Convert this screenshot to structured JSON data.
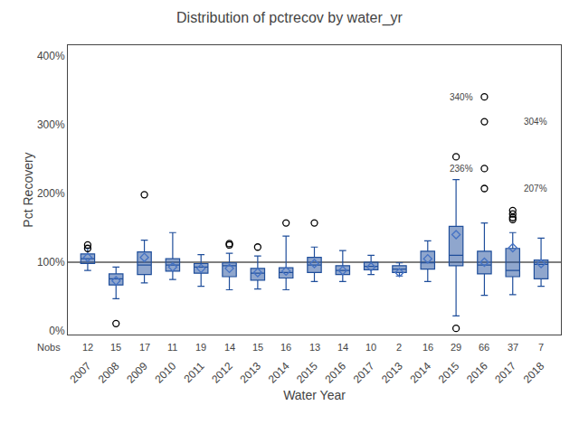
{
  "chart_data": {
    "type": "box",
    "title": "Distribution of pctrecov by water_yr",
    "xlabel": "Water Year",
    "ylabel": "Pct Recovery",
    "categories": [
      "2007",
      "2008",
      "2009",
      "2010",
      "2011",
      "2012",
      "2013",
      "2014",
      "2015",
      "2016",
      "2017",
      "2013",
      "2014",
      "2015",
      "2016",
      "2017",
      "2018"
    ],
    "ylim": [
      -5,
      415
    ],
    "yticks": [
      {
        "value": 0,
        "label": "0%"
      },
      {
        "value": 100,
        "label": "100%"
      },
      {
        "value": 200,
        "label": "200%"
      },
      {
        "value": 300,
        "label": "300%"
      },
      {
        "value": 400,
        "label": "400%"
      }
    ],
    "grid": false,
    "hline": 100,
    "series": [
      {
        "type": "box",
        "color": "#1f4e9b",
        "median": [
          105,
          76,
          96,
          96,
          93,
          95,
          84,
          85,
          96,
          88,
          94,
          90,
          99,
          110,
          96,
          88,
          97
        ],
        "q1": [
          98,
          67,
          82,
          87,
          84,
          79,
          74,
          77,
          85,
          82,
          89,
          85,
          90,
          95,
          83,
          79,
          76
        ],
        "q3": [
          112,
          83,
          115,
          105,
          98,
          99,
          91,
          92,
          107,
          95,
          100,
          95,
          116,
          152,
          116,
          120,
          103
        ],
        "whislo": [
          88,
          47,
          70,
          75,
          65,
          60,
          61,
          60,
          72,
          72,
          82,
          80,
          72,
          22,
          52,
          53,
          65
        ],
        "whishi": [
          120,
          93,
          132,
          143,
          111,
          113,
          109,
          138,
          122,
          117,
          110,
          99,
          131,
          220,
          157,
          143,
          135
        ]
      },
      {
        "type": "scatter",
        "marker": "diamond-open",
        "color": "#4472c4",
        "values": [
          107,
          73,
          107,
          93,
          91,
          91,
          85,
          87,
          98,
          88,
          93,
          85,
          105,
          140,
          100,
          121,
          98
        ]
      },
      {
        "type": "scatter",
        "marker": "circle-open",
        "color": "#000000",
        "values": [
          [
            125,
            120
          ],
          [
            11
          ],
          [
            198
          ],
          [],
          [],
          [
            127,
            125
          ],
          [
            122
          ],
          [
            157
          ],
          [
            157
          ],
          [],
          [],
          [],
          [],
          [
            253,
            4
          ],
          [
            340,
            304,
            236,
            207
          ],
          [
            175,
            170,
            165,
            162
          ],
          []
        ]
      }
    ],
    "annotations": [
      {
        "category_index": 14,
        "value": 340,
        "label": "340%",
        "side": "left"
      },
      {
        "category_index": 15,
        "value": 304,
        "label": "304%",
        "side": "right"
      },
      {
        "category_index": 14,
        "value": 236,
        "label": "236%",
        "side": "left"
      },
      {
        "category_index": 15,
        "value": 207,
        "label": "207%",
        "side": "right"
      }
    ],
    "nobs_label": "Nobs",
    "nobs": [
      12,
      15,
      17,
      11,
      19,
      14,
      15,
      16,
      13,
      14,
      10,
      2,
      16,
      29,
      66,
      37,
      7
    ]
  }
}
